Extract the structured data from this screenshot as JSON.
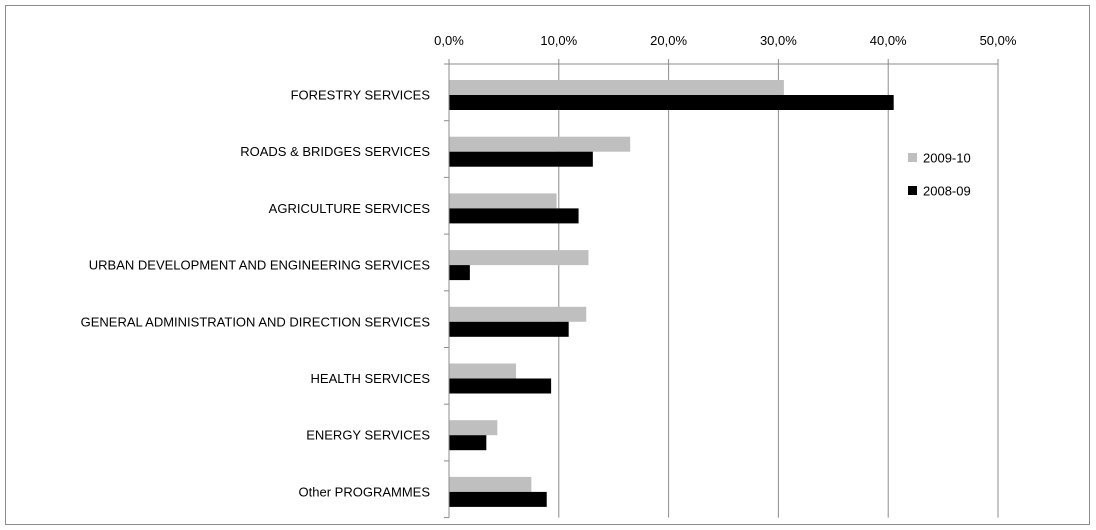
{
  "chart_data": {
    "type": "bar",
    "orientation": "horizontal",
    "categories": [
      "FORESTRY SERVICES",
      "ROADS & BRIDGES  SERVICES",
      "AGRICULTURE  SERVICES",
      "URBAN DEVELOPMENT  AND ENGINEERING  SERVICES",
      "GENERAL ADMINISTRATION  AND DIRECTION SERVICES",
      "HEALTH SERVICES",
      "ENERGY  SERVICES",
      "Other PROGRAMMES"
    ],
    "series": [
      {
        "name": "2009-10",
        "color": "#bfbfbf",
        "values": [
          30.5,
          16.5,
          9.8,
          12.7,
          12.5,
          6.1,
          4.4,
          7.5
        ]
      },
      {
        "name": "2008-09",
        "color": "#000000",
        "values": [
          40.5,
          13.1,
          11.8,
          1.9,
          10.9,
          9.3,
          3.4,
          8.9
        ]
      }
    ],
    "x_ticks": [
      "0,0%",
      "10,0%",
      "20,0%",
      "30,0%",
      "40,0%",
      "50,0%"
    ],
    "xlim": [
      0,
      50
    ],
    "xaxis_position": "top",
    "grid": true,
    "legend_position": "right",
    "title": "",
    "xlabel": "",
    "ylabel": ""
  }
}
